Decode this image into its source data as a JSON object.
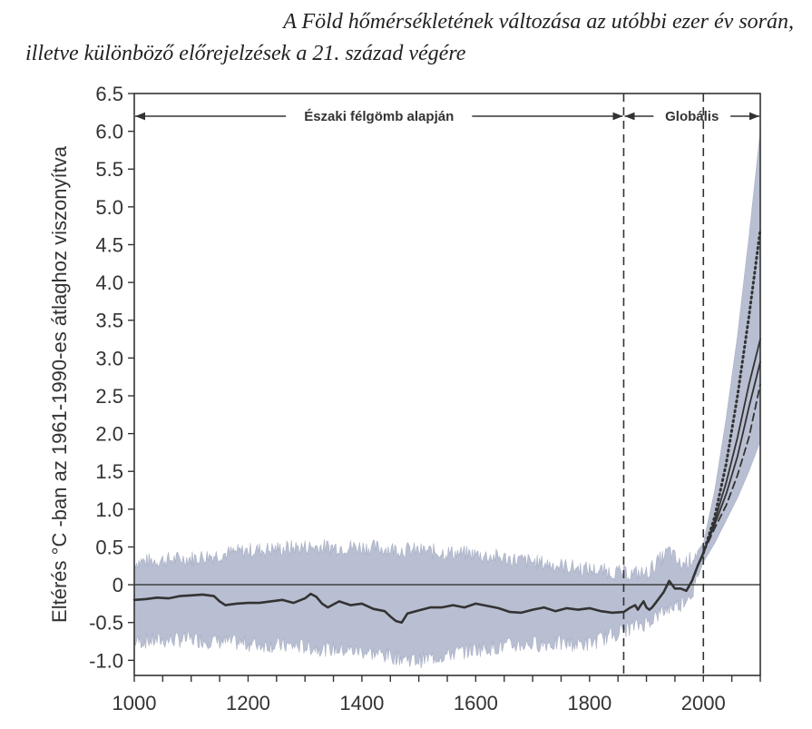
{
  "caption": {
    "line1": "A Föld hőmérsékletének változása az utóbbi ezer év során,",
    "line2": "illetve különböző előrejelzések a 21. század végére"
  },
  "chart_data": {
    "type": "line",
    "xlabel": "",
    "ylabel": "Eltérés °C -ban az 1961-1990-es átlaghoz viszonyítva",
    "xlim": [
      1000,
      2100
    ],
    "ylim": [
      -1.2,
      6.5
    ],
    "x_ticks": [
      1000,
      1200,
      1400,
      1600,
      1800,
      2000
    ],
    "y_ticks": [
      {
        "value": 6.5,
        "label": "6.5"
      },
      {
        "value": 6.0,
        "label": "6.0"
      },
      {
        "value": 5.5,
        "label": "5.5"
      },
      {
        "value": 5.0,
        "label": "5.0"
      },
      {
        "value": 4.5,
        "label": "4.5"
      },
      {
        "value": 4.0,
        "label": "4.0"
      },
      {
        "value": 3.5,
        "label": "3.5"
      },
      {
        "value": 3.0,
        "label": "3.0"
      },
      {
        "value": 2.5,
        "label": "2.5"
      },
      {
        "value": 2.0,
        "label": "2.0"
      },
      {
        "value": 1.5,
        "label": "1.5"
      },
      {
        "value": 1.0,
        "label": "1.0"
      },
      {
        "value": 0.5,
        "label": "0.5"
      },
      {
        "value": 0,
        "label": "0"
      },
      {
        "value": -0.5,
        "label": "-0.5"
      },
      {
        "value": -1.0,
        "label": "-1.0"
      }
    ],
    "zero_line": 0,
    "regions": [
      {
        "label": "Északi félgömb alapján",
        "from": 1000,
        "to": 1860
      },
      {
        "label": "Globális",
        "from": 1860,
        "to": 2100
      }
    ],
    "vertical_dashed_lines": [
      1860,
      2000
    ],
    "band_color": "#b9bfd2",
    "line_color": "#333333",
    "series": [
      {
        "style": "solid",
        "x": [
          1000,
          1020,
          1040,
          1060,
          1080,
          1100,
          1120,
          1140,
          1150,
          1160,
          1180,
          1200,
          1220,
          1240,
          1260,
          1280,
          1300,
          1310,
          1320,
          1330,
          1340,
          1360,
          1380,
          1400,
          1420,
          1440,
          1450,
          1460,
          1470,
          1480,
          1500,
          1520,
          1540,
          1560,
          1580,
          1600,
          1620,
          1640,
          1660,
          1680,
          1700,
          1720,
          1740,
          1760,
          1780,
          1800,
          1820,
          1840,
          1860,
          1870,
          1880,
          1885,
          1890,
          1895,
          1900,
          1905,
          1910,
          1915,
          1920,
          1930,
          1940,
          1950,
          1960,
          1970,
          1980,
          1990,
          2000
        ],
        "y": [
          -0.2,
          -0.19,
          -0.17,
          -0.18,
          -0.15,
          -0.14,
          -0.13,
          -0.15,
          -0.22,
          -0.27,
          -0.25,
          -0.24,
          -0.24,
          -0.22,
          -0.2,
          -0.24,
          -0.18,
          -0.12,
          -0.16,
          -0.25,
          -0.3,
          -0.22,
          -0.27,
          -0.25,
          -0.32,
          -0.35,
          -0.42,
          -0.48,
          -0.5,
          -0.38,
          -0.34,
          -0.3,
          -0.3,
          -0.27,
          -0.3,
          -0.25,
          -0.28,
          -0.31,
          -0.36,
          -0.37,
          -0.33,
          -0.3,
          -0.35,
          -0.31,
          -0.33,
          -0.31,
          -0.35,
          -0.37,
          -0.36,
          -0.31,
          -0.27,
          -0.33,
          -0.27,
          -0.22,
          -0.3,
          -0.33,
          -0.3,
          -0.25,
          -0.2,
          -0.1,
          0.05,
          -0.05,
          -0.05,
          -0.08,
          0.05,
          0.25,
          0.42
        ]
      },
      {
        "style": "solid",
        "x": [
          2000,
          2020,
          2040,
          2060,
          2080,
          2100
        ],
        "y": [
          0.42,
          0.85,
          1.35,
          1.95,
          2.65,
          3.25
        ]
      },
      {
        "style": "solid",
        "x": [
          2000,
          2020,
          2040,
          2060,
          2080,
          2100
        ],
        "y": [
          0.42,
          0.8,
          1.2,
          1.7,
          2.35,
          2.95
        ]
      },
      {
        "style": "dashed",
        "x": [
          2000,
          2020,
          2040,
          2060,
          2080,
          2100
        ],
        "y": [
          0.42,
          0.75,
          1.05,
          1.45,
          1.95,
          2.65
        ]
      },
      {
        "style": "dotted",
        "x": [
          2000,
          2020,
          2040,
          2060,
          2080,
          2100
        ],
        "y": [
          0.42,
          0.9,
          1.6,
          2.5,
          3.55,
          4.7
        ]
      }
    ],
    "band": {
      "x": [
        1000,
        1100,
        1200,
        1300,
        1400,
        1500,
        1600,
        1700,
        1800,
        1860,
        1900,
        1940,
        1960,
        1980,
        2000,
        2020,
        2040,
        2060,
        2080,
        2100
      ],
      "upper": [
        0.3,
        0.35,
        0.45,
        0.5,
        0.5,
        0.45,
        0.4,
        0.3,
        0.2,
        0.15,
        0.15,
        0.45,
        0.25,
        0.35,
        0.55,
        1.25,
        2.2,
        3.3,
        4.6,
        6.0
      ],
      "lower": [
        -0.75,
        -0.72,
        -0.78,
        -0.82,
        -0.88,
        -1.0,
        -0.85,
        -0.78,
        -0.78,
        -0.6,
        -0.5,
        -0.3,
        -0.25,
        -0.1,
        0.3,
        0.55,
        0.85,
        1.15,
        1.5,
        1.9
      ]
    }
  }
}
